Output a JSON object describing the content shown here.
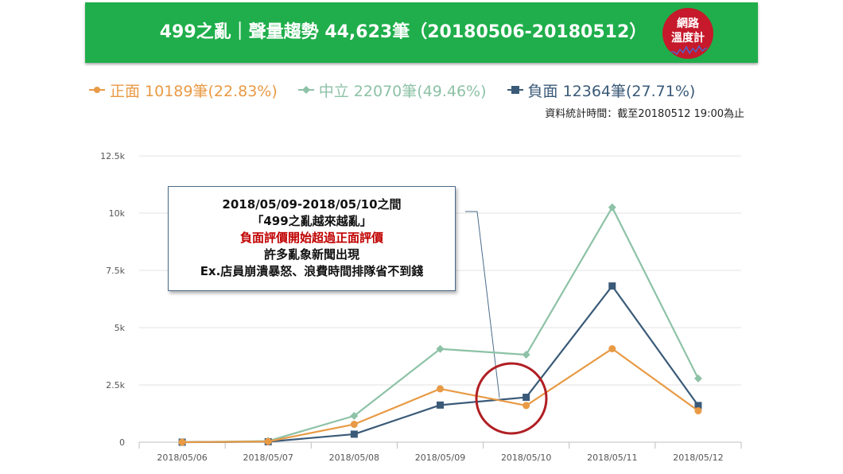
{
  "header": {
    "title": "499之亂｜聲量趨勢 44,623筆（20180506-20180512）",
    "logo_line1": "網路",
    "logo_line2": "溫度計"
  },
  "legend": [
    {
      "label": "正面 10189筆(22.83%)",
      "color": "#e89a45",
      "marker": "circle"
    },
    {
      "label": "中立 22070筆(49.46%)",
      "color": "#8dc2a6",
      "marker": "diamond"
    },
    {
      "label": "負面 12364筆(27.71%)",
      "color": "#3a5a78",
      "marker": "square"
    }
  ],
  "stat_note": "資料統計時間：截至20180512 19:00為止",
  "callout": {
    "line1": "2018/05/09-2018/05/10之間",
    "line2": "「499之亂越來越亂」",
    "line3": "負面評價開始超過正面評價",
    "line4": "許多亂象新聞出現",
    "line5": "Ex.店員崩潰暴怒、浪費時間排隊省不到錢"
  },
  "colors": {
    "positive": "#e89a45",
    "neutral": "#8dc2a6",
    "negative": "#3a5a78",
    "highlight_circle": "#b01f24"
  },
  "chart_data": {
    "type": "line",
    "categories": [
      "2018/05/06",
      "2018/05/07",
      "2018/05/08",
      "2018/05/09",
      "2018/05/10",
      "2018/05/11",
      "2018/05/12"
    ],
    "series": [
      {
        "name": "中立",
        "color": "#8dc2a6",
        "marker": "diamond",
        "values": [
          0,
          50,
          1150,
          4070,
          3820,
          10250,
          2780
        ]
      },
      {
        "name": "負面",
        "color": "#3a5a78",
        "marker": "square",
        "values": [
          0,
          20,
          350,
          1620,
          1960,
          6820,
          1600
        ]
      },
      {
        "name": "正面",
        "color": "#e89a45",
        "marker": "circle",
        "values": [
          0,
          30,
          780,
          2330,
          1600,
          4080,
          1370
        ]
      }
    ],
    "yticks": [
      {
        "value": 0,
        "label": "0"
      },
      {
        "value": 2500,
        "label": "2.5k"
      },
      {
        "value": 5000,
        "label": "5k"
      },
      {
        "value": 7500,
        "label": "7.5k"
      },
      {
        "value": 10000,
        "label": "10k"
      },
      {
        "value": 12500,
        "label": "12.5k"
      }
    ],
    "ylim": [
      0,
      12500
    ],
    "grid": true,
    "legend_position": "top"
  }
}
